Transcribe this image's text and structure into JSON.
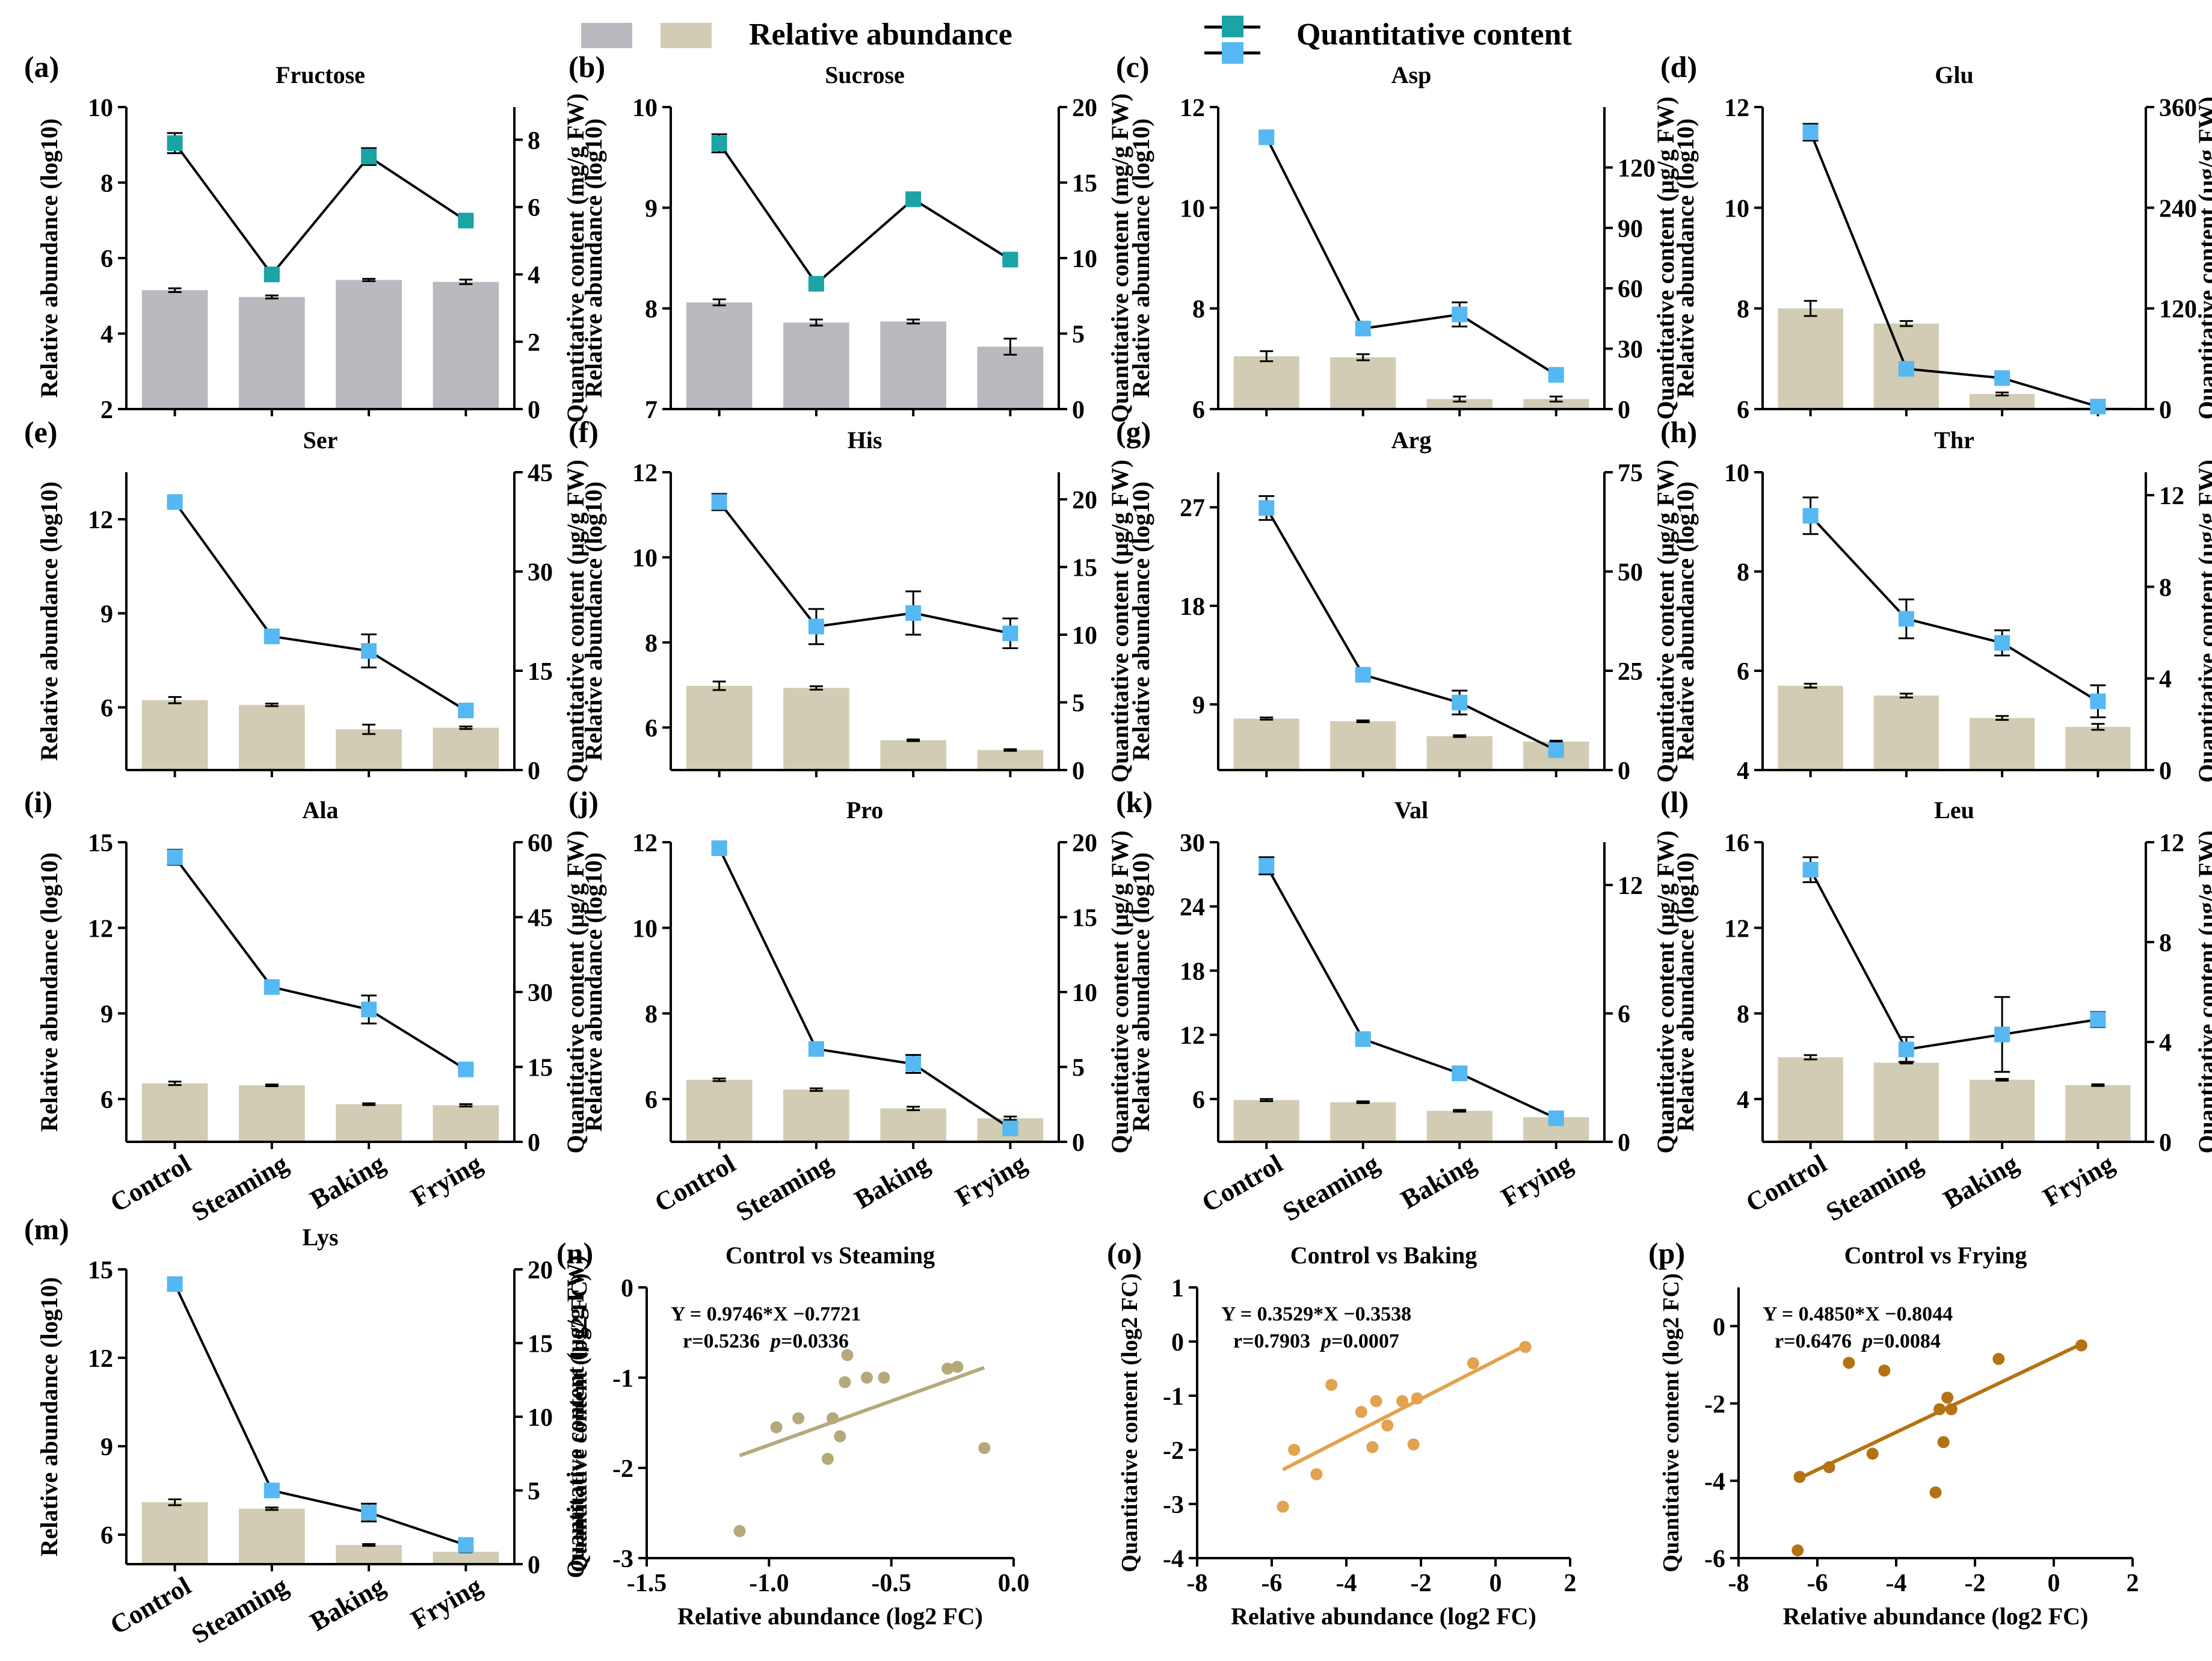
{
  "legend": {
    "bar_label": "Relative abundance",
    "line_label": "Quantitative content",
    "bar_colors": [
      "#b9b9c0",
      "#d1ccb3"
    ],
    "line_marker_colors": [
      "#1ba3a5",
      "#55b8f2"
    ]
  },
  "chart_data": [
    {
      "id": "a",
      "label": "(a)",
      "title": "Fructose",
      "type": "bar+line",
      "categories": [
        "Control",
        "Steaming",
        "Baking",
        "Frying"
      ],
      "show_xticks": false,
      "bar_values": [
        5.15,
        4.97,
        5.42,
        5.37
      ],
      "bar_errors": [
        0.05,
        0.04,
        0.03,
        0.06
      ],
      "bar_color": "#b9b9c0",
      "line_values": [
        7.9,
        4.0,
        7.5,
        5.6
      ],
      "line_errors": [
        0.3,
        0.08,
        0.25,
        0.08
      ],
      "marker_color": "#1ba3a5",
      "ylabel_left": "Relative abundance (log10)",
      "ylabel_right": "Quantitative content (mg/g FW)",
      "ylim_left": [
        2,
        10
      ],
      "yticks_left": [
        2,
        4,
        6,
        8,
        10
      ],
      "ylim_right": [
        0,
        8.97
      ],
      "yticks_right": [
        0,
        2,
        4,
        6,
        8
      ]
    },
    {
      "id": "b",
      "label": "(b)",
      "title": "Sucrose",
      "type": "bar+line",
      "categories": [
        "Control",
        "Steaming",
        "Baking",
        "Frying"
      ],
      "show_xticks": false,
      "bar_values": [
        8.06,
        7.86,
        7.87,
        7.62
      ],
      "bar_errors": [
        0.03,
        0.03,
        0.02,
        0.08
      ],
      "bar_color": "#b9b9c0",
      "line_values": [
        17.6,
        8.3,
        13.9,
        9.9
      ],
      "line_errors": [
        0.6,
        0.2,
        0.2,
        0.2
      ],
      "marker_color": "#1ba3a5",
      "ylabel_left": "Relative abundance (log10)",
      "ylabel_right": "Quantitative content (mg/g FW)",
      "ylim_left": [
        7,
        10
      ],
      "yticks_left": [
        7,
        8,
        9,
        10
      ],
      "ylim_right": [
        0,
        20
      ],
      "yticks_right": [
        0,
        5,
        10,
        15,
        20
      ]
    },
    {
      "id": "c",
      "label": "(c)",
      "title": "Asp",
      "type": "bar+line",
      "categories": [
        "Control",
        "Steaming",
        "Baking",
        "Frying"
      ],
      "show_xticks": false,
      "bar_values": [
        7.05,
        7.03,
        6.2,
        6.2
      ],
      "bar_errors": [
        0.1,
        0.06,
        0.05,
        0.05
      ],
      "bar_color": "#d1ccb3",
      "line_values": [
        135,
        40,
        47,
        17
      ],
      "line_errors": [
        1.5,
        3,
        6,
        1
      ],
      "marker_color": "#55b8f2",
      "ylabel_left": "Relative abundance (log10)",
      "ylabel_right": "Quantitative content (μg/g FW)",
      "ylim_left": [
        6,
        12
      ],
      "yticks_left": [
        6,
        8,
        10,
        12
      ],
      "ylim_right": [
        0,
        150
      ],
      "yticks_right": [
        0,
        30,
        60,
        90,
        120
      ]
    },
    {
      "id": "d",
      "label": "(d)",
      "title": "Glu",
      "type": "bar+line",
      "categories": [
        "Control",
        "Steaming",
        "Baking",
        "Frying"
      ],
      "show_xticks": false,
      "bar_values": [
        8.0,
        7.7,
        6.3,
        6.03
      ],
      "bar_errors": [
        0.15,
        0.05,
        0.03,
        0.02
      ],
      "bar_color": "#d1ccb3",
      "line_values": [
        330,
        48,
        37,
        3
      ],
      "line_errors": [
        10,
        2,
        2,
        1
      ],
      "marker_color": "#55b8f2",
      "ylabel_left": "Relative abundance (log10)",
      "ylabel_right": "Quantitative content (μg/g FW)",
      "ylim_left": [
        6,
        12
      ],
      "yticks_left": [
        6,
        8,
        10,
        12
      ],
      "ylim_right": [
        0,
        360
      ],
      "yticks_right": [
        0,
        120,
        240,
        360
      ]
    },
    {
      "id": "e",
      "label": "(e)",
      "title": "Ser",
      "type": "bar+line",
      "categories": [
        "Control",
        "Steaming",
        "Baking",
        "Frying"
      ],
      "show_xticks": false,
      "bar_values": [
        6.23,
        6.08,
        5.3,
        5.35
      ],
      "bar_errors": [
        0.1,
        0.04,
        0.15,
        0.04
      ],
      "bar_color": "#d1ccb3",
      "line_values": [
        40.5,
        20.2,
        18.0,
        9.0
      ],
      "line_errors": [
        0.4,
        0.4,
        2.5,
        0.6
      ],
      "marker_color": "#55b8f2",
      "ylabel_left": "Relative abundance (log10)",
      "ylabel_right": "Quantitative content (μg/g FW)",
      "ylim_left": [
        4,
        13.5
      ],
      "yticks_left": [
        6,
        9,
        12
      ],
      "ylim_right": [
        0,
        45
      ],
      "yticks_right": [
        0,
        15,
        30,
        45
      ]
    },
    {
      "id": "f",
      "label": "(f)",
      "title": "His",
      "type": "bar+line",
      "categories": [
        "Control",
        "Steaming",
        "Baking",
        "Frying"
      ],
      "show_xticks": false,
      "bar_values": [
        6.98,
        6.93,
        5.7,
        5.47
      ],
      "bar_errors": [
        0.1,
        0.04,
        0.02,
        0.02
      ],
      "bar_color": "#d1ccb3",
      "line_values": [
        19.8,
        10.6,
        11.6,
        10.1
      ],
      "line_errors": [
        0.6,
        1.3,
        1.6,
        1.1
      ],
      "marker_color": "#55b8f2",
      "ylabel_left": "Relative abundance (log10)",
      "ylabel_right": "Quantitative content (μg/g FW)",
      "ylim_left": [
        5,
        12
      ],
      "yticks_left": [
        6,
        8,
        10,
        12
      ],
      "ylim_right": [
        0,
        22
      ],
      "yticks_right": [
        0,
        5,
        10,
        15,
        20
      ]
    },
    {
      "id": "g",
      "label": "(g)",
      "title": "Arg",
      "type": "bar+line",
      "categories": [
        "Control",
        "Steaming",
        "Baking",
        "Frying"
      ],
      "show_xticks": false,
      "bar_values": [
        7.7,
        7.45,
        6.1,
        5.6
      ],
      "bar_errors": [
        0.1,
        0.08,
        0.08,
        0.08
      ],
      "bar_color": "#d1ccb3",
      "line_values": [
        66,
        24,
        17,
        5
      ],
      "line_errors": [
        3,
        0.8,
        3,
        0.5
      ],
      "marker_color": "#55b8f2",
      "ylabel_left": "Relative abundance (log10)",
      "ylabel_right": "Quantitative content (μg/g FW)",
      "ylim_left": [
        3,
        30.2
      ],
      "yticks_left": [
        9,
        18,
        27
      ],
      "ylim_right": [
        0,
        75
      ],
      "yticks_right": [
        0,
        25,
        50,
        75
      ]
    },
    {
      "id": "h",
      "label": "(h)",
      "title": "Thr",
      "type": "bar+line",
      "categories": [
        "Control",
        "Steaming",
        "Baking",
        "Frying"
      ],
      "show_xticks": false,
      "bar_values": [
        5.7,
        5.5,
        5.05,
        4.87
      ],
      "bar_errors": [
        0.04,
        0.04,
        0.04,
        0.06
      ],
      "bar_color": "#d1ccb3",
      "line_values": [
        11.1,
        6.6,
        5.55,
        3.0
      ],
      "line_errors": [
        0.8,
        0.85,
        0.55,
        0.7
      ],
      "marker_color": "#55b8f2",
      "ylabel_left": "Relative abundance (log10)",
      "ylabel_right": "Quantitative content (μg/g FW)",
      "ylim_left": [
        4,
        10
      ],
      "yticks_left": [
        4,
        6,
        8,
        10
      ],
      "ylim_right": [
        0,
        13
      ],
      "yticks_right": [
        0,
        4,
        8,
        12
      ]
    },
    {
      "id": "i",
      "label": "(i)",
      "title": "Ala",
      "type": "bar+line",
      "categories": [
        "Control",
        "Steaming",
        "Baking",
        "Frying"
      ],
      "show_xticks": true,
      "bar_values": [
        6.55,
        6.48,
        5.82,
        5.78
      ],
      "bar_errors": [
        0.06,
        0.03,
        0.03,
        0.04
      ],
      "bar_color": "#d1ccb3",
      "line_values": [
        57,
        31,
        26.5,
        14.5
      ],
      "line_errors": [
        1.5,
        0.6,
        2.8,
        0.5
      ],
      "marker_color": "#55b8f2",
      "ylabel_left": "Relative abundance (log10)",
      "ylabel_right": "Quantitative content (μg/g FW)",
      "ylim_left": [
        4.5,
        15
      ],
      "yticks_left": [
        6,
        9,
        12,
        15
      ],
      "ylim_right": [
        0,
        60
      ],
      "yticks_right": [
        0,
        15,
        30,
        45,
        60
      ]
    },
    {
      "id": "j",
      "label": "(j)",
      "title": "Pro",
      "type": "bar+line",
      "categories": [
        "Control",
        "Steaming",
        "Baking",
        "Frying"
      ],
      "show_xticks": true,
      "bar_values": [
        6.45,
        6.22,
        5.78,
        5.55
      ],
      "bar_errors": [
        0.03,
        0.03,
        0.04,
        0.04
      ],
      "bar_color": "#d1ccb3",
      "line_values": [
        19.6,
        6.2,
        5.2,
        0.9
      ],
      "line_errors": [
        0.3,
        0.3,
        0.6,
        0.4
      ],
      "marker_color": "#55b8f2",
      "ylabel_left": "Relative abundance (log10)",
      "ylabel_right": "Quantitative content (μg/g FW)",
      "ylim_left": [
        5,
        12
      ],
      "yticks_left": [
        6,
        8,
        10,
        12
      ],
      "ylim_right": [
        0,
        20
      ],
      "yticks_right": [
        0,
        5,
        10,
        15,
        20
      ]
    },
    {
      "id": "k",
      "label": "(k)",
      "title": "Val",
      "type": "bar+line",
      "categories": [
        "Control",
        "Steaming",
        "Baking",
        "Frying"
      ],
      "show_xticks": true,
      "bar_values": [
        5.9,
        5.7,
        4.9,
        4.3
      ],
      "bar_errors": [
        0.1,
        0.08,
        0.08,
        0.08
      ],
      "bar_color": "#d1ccb3",
      "line_values": [
        12.9,
        4.8,
        3.2,
        1.1
      ],
      "line_errors": [
        0.4,
        0.15,
        0.3,
        0.15
      ],
      "marker_color": "#55b8f2",
      "ylabel_left": "Relative abundance (log10)",
      "ylabel_right": "Quantitative content (μg/g FW)",
      "ylim_left": [
        2,
        30
      ],
      "yticks_left": [
        6,
        12,
        18,
        24,
        30
      ],
      "ylim_right": [
        0,
        14
      ],
      "yticks_right": [
        0,
        6,
        12
      ]
    },
    {
      "id": "l",
      "label": "(l)",
      "title": "Leu",
      "type": "bar+line",
      "categories": [
        "Control",
        "Steaming",
        "Baking",
        "Frying"
      ],
      "show_xticks": true,
      "bar_values": [
        5.95,
        5.7,
        4.9,
        4.65
      ],
      "bar_errors": [
        0.1,
        0.04,
        0.04,
        0.04
      ],
      "bar_color": "#d1ccb3",
      "line_values": [
        10.9,
        3.7,
        4.3,
        4.9
      ],
      "line_errors": [
        0.5,
        0.5,
        1.5,
        0.3
      ],
      "marker_color": "#55b8f2",
      "ylabel_left": "Relative abundance (log10)",
      "ylabel_right": "Quantitative content (μg/g FW)",
      "ylim_left": [
        2,
        16
      ],
      "yticks_left": [
        4,
        8,
        12,
        16
      ],
      "ylim_right": [
        0,
        12
      ],
      "yticks_right": [
        0,
        4,
        8,
        12
      ]
    },
    {
      "id": "m",
      "label": "(m)",
      "title": "Lys",
      "type": "bar+line",
      "categories": [
        "Control",
        "Steaming",
        "Baking",
        "Frying"
      ],
      "show_xticks": true,
      "bar_values": [
        7.1,
        6.88,
        5.65,
        5.42
      ],
      "bar_errors": [
        0.1,
        0.04,
        0.03,
        0.02
      ],
      "bar_color": "#d1ccb3",
      "line_values": [
        19,
        5,
        3.5,
        1.3
      ],
      "line_errors": [
        0.4,
        0.3,
        0.6,
        0.3
      ],
      "marker_color": "#55b8f2",
      "ylabel_left": "Relative abundance (log10)",
      "ylabel_right": "Quantitative content (μg/g FW)",
      "ylim_left": [
        5,
        15
      ],
      "yticks_left": [
        6,
        9,
        12,
        15
      ],
      "ylim_right": [
        0,
        20
      ],
      "yticks_right": [
        0,
        5,
        10,
        15,
        20
      ]
    },
    {
      "id": "n",
      "label": "(n)",
      "title": "Control vs Steaming",
      "type": "scatter",
      "equation": "Y = 0.9746*X −0.7721",
      "stats": "r=0.5236",
      "p_text": "p",
      "p_value": "=0.0336",
      "x": [
        -1.12,
        -0.97,
        -0.88,
        -0.76,
        -0.74,
        -0.71,
        -0.69,
        -0.68,
        -0.6,
        -0.53,
        -0.27,
        -0.23,
        -0.12
      ],
      "y": [
        -2.7,
        -1.55,
        -1.45,
        -1.9,
        -1.45,
        -1.65,
        -1.05,
        -0.75,
        -1.0,
        -1.0,
        -0.9,
        -0.88,
        -1.78
      ],
      "fit": [
        0.9746,
        -0.7721
      ],
      "fit_x": [
        -1.12,
        -0.12
      ],
      "color": "#b5a97c",
      "xlabel": "Relative abundance (log2 FC)",
      "ylabel": "Quantitative content (log2 FC)",
      "xlim": [
        -1.5,
        0.0
      ],
      "xticks": [
        -1.5,
        -1.0,
        -0.5,
        0.0
      ],
      "xtick_labels": [
        "-1.5",
        "-1.0",
        "-0.5",
        "0.0"
      ],
      "ylim": [
        -3,
        0
      ],
      "yticks": [
        -3,
        -2,
        -1,
        0
      ]
    },
    {
      "id": "o",
      "label": "(o)",
      "title": "Control vs Baking",
      "type": "scatter",
      "equation": "Y = 0.3529*X −0.3538",
      "stats": "r=0.7903",
      "p_text": "p",
      "p_value": "=0.0007",
      "x": [
        -5.7,
        -5.4,
        -4.8,
        -4.4,
        -3.6,
        -3.3,
        -3.2,
        -2.9,
        -2.5,
        -2.2,
        -2.1,
        -0.6,
        0.8
      ],
      "y": [
        -3.05,
        -2.0,
        -2.45,
        -0.8,
        -1.3,
        -1.95,
        -1.1,
        -1.55,
        -1.1,
        -1.9,
        -1.05,
        -0.4,
        -0.1
      ],
      "fit": [
        0.3529,
        -0.3538
      ],
      "fit_x": [
        -5.7,
        0.8
      ],
      "color": "#e3a24f",
      "xlabel": "Relative abundance (log2 FC)",
      "ylabel": "Quantitative content (log2 FC)",
      "xlim": [
        -8,
        2
      ],
      "xticks": [
        -8,
        -6,
        -4,
        -2,
        0,
        2
      ],
      "xtick_labels": [
        "-8",
        "-6",
        "-4",
        "-2",
        "0",
        "2"
      ],
      "ylim": [
        -4,
        1
      ],
      "yticks": [
        -4,
        -3,
        -2,
        -1,
        0,
        1
      ]
    },
    {
      "id": "p",
      "label": "(p)",
      "title": "Control vs Frying",
      "type": "scatter",
      "equation": "Y = 0.4850*X −0.8044",
      "stats": "r=0.6476",
      "p_text": "p",
      "p_value": "=0.0084",
      "x": [
        -6.5,
        -6.45,
        -5.7,
        -5.2,
        -4.6,
        -4.3,
        -3.0,
        -2.9,
        -2.8,
        -2.7,
        -2.6,
        -1.4,
        0.7
      ],
      "y": [
        -5.8,
        -3.9,
        -3.65,
        -0.95,
        -3.3,
        -1.15,
        -4.3,
        -2.15,
        -3.0,
        -1.85,
        -2.15,
        -0.85,
        -0.5
      ],
      "fit": [
        0.485,
        -0.8044
      ],
      "fit_x": [
        -6.5,
        0.7
      ],
      "color": "#b57213",
      "xlabel": "Relative abundance (log2 FC)",
      "ylabel": "Quantitative content (log2 FC)",
      "xlim": [
        -8,
        2
      ],
      "xticks": [
        -8,
        -6,
        -4,
        -2,
        0,
        2
      ],
      "xtick_labels": [
        "-8",
        "-6",
        "-4",
        "-2",
        "0",
        "2"
      ],
      "ylim": [
        -6,
        1
      ],
      "yticks": [
        -6,
        -4,
        -2,
        0
      ]
    }
  ]
}
